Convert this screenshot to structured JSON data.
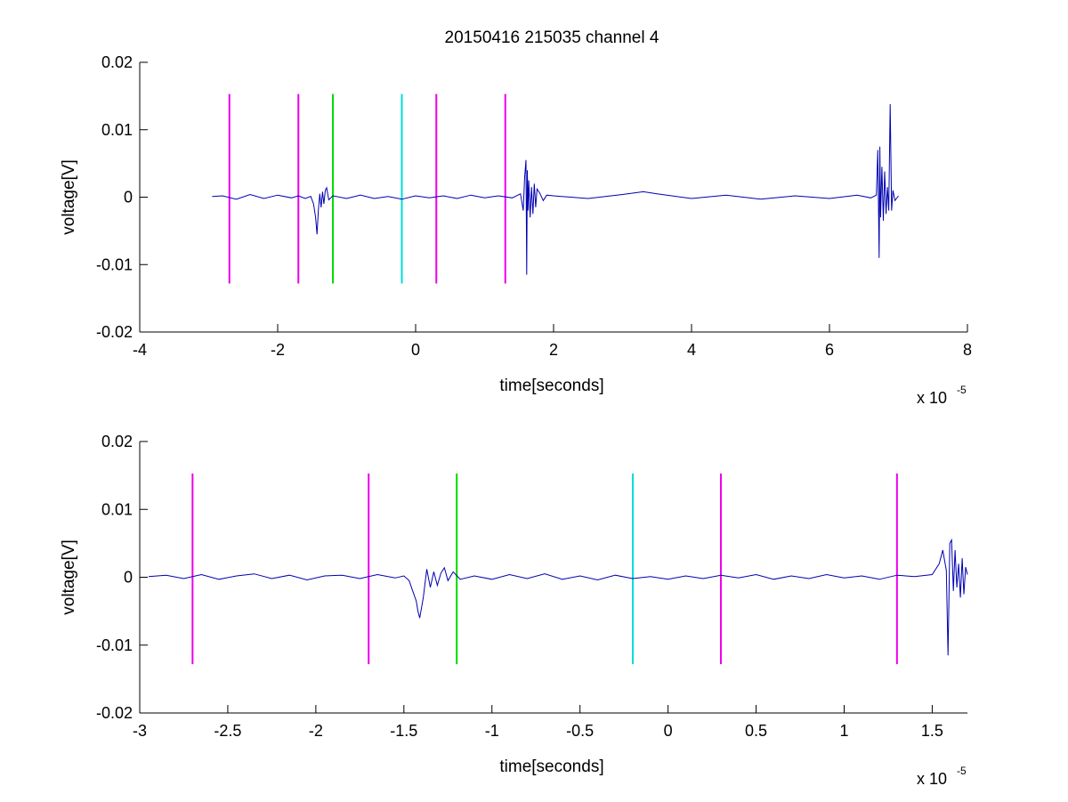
{
  "figure": {
    "background": "#ffffff",
    "title": "20150416 215035 channel 4"
  },
  "chart_data": [
    {
      "type": "line",
      "title": "20150416 215035 channel 4",
      "xlabel": "time[seconds]",
      "ylabel": "voltage[V]",
      "x_exponent_label": "x 10",
      "x_exponent": "-5",
      "xlim": [
        -4,
        8
      ],
      "ylim": [
        -0.02,
        0.02
      ],
      "x_scale": 1e-05,
      "xticks": [
        -4,
        -2,
        0,
        2,
        4,
        6,
        8
      ],
      "xtick_labels": [
        "-4",
        "-2",
        "0",
        "2",
        "4",
        "6",
        "8"
      ],
      "yticks": [
        -0.02,
        -0.01,
        0,
        0.01,
        0.02
      ],
      "ytick_labels": [
        "-0.02",
        "-0.01",
        "0",
        "0.01",
        "0.02"
      ],
      "grid": false,
      "series": [
        {
          "color": "#0000b0",
          "x": [
            -2.95,
            -2.8,
            -2.6,
            -2.4,
            -2.2,
            -2.0,
            -1.8,
            -1.7,
            -1.6,
            -1.52,
            -1.48,
            -1.45,
            -1.43,
            -1.41,
            -1.39,
            -1.37,
            -1.35,
            -1.33,
            -1.31,
            -1.29,
            -1.26,
            -1.2,
            -1.0,
            -0.8,
            -0.6,
            -0.4,
            -0.2,
            0.0,
            0.2,
            0.4,
            0.6,
            0.8,
            1.0,
            1.2,
            1.4,
            1.52,
            1.56,
            1.58,
            1.6,
            1.61,
            1.62,
            1.63,
            1.64,
            1.66,
            1.68,
            1.7,
            1.72,
            1.74,
            1.76,
            1.8,
            1.85,
            1.9,
            2.0,
            2.5,
            3.0,
            3.3,
            3.5,
            4.0,
            4.5,
            5.0,
            5.5,
            6.0,
            6.4,
            6.6,
            6.68,
            6.7,
            6.72,
            6.73,
            6.74,
            6.76,
            6.78,
            6.8,
            6.82,
            6.84,
            6.86,
            6.88,
            6.9,
            6.92,
            6.95,
            7.0
          ],
          "y": [
            0.0001,
            0.0002,
            -0.0003,
            0.0004,
            -0.0002,
            0.0003,
            -0.0001,
            0.0002,
            -0.0002,
            0.0001,
            -0.001,
            -0.003,
            -0.0055,
            -0.002,
            0.0005,
            -0.0015,
            0.0008,
            -0.001,
            0.001,
            0.0014,
            -0.0004,
            0.0002,
            -0.0002,
            0.0003,
            -0.0002,
            0.0001,
            -0.0003,
            0.0002,
            -0.0001,
            0.0002,
            -0.0002,
            0.0003,
            -0.0001,
            0.0002,
            -0.0001,
            0.0005,
            -0.002,
            0.003,
            0.0055,
            -0.0115,
            0.004,
            -0.002,
            0.0025,
            -0.003,
            0.0015,
            -0.0025,
            0.002,
            -0.0015,
            0.0012,
            0.0006,
            -0.0005,
            0.0003,
            0.0002,
            -0.0002,
            0.0004,
            0.0008,
            0.0005,
            -0.0002,
            0.0003,
            -0.0003,
            0.0002,
            -0.0002,
            0.0003,
            -0.0001,
            0.0003,
            0.007,
            -0.009,
            0.0075,
            -0.003,
            0.0045,
            -0.0035,
            0.0038,
            -0.0025,
            0.0015,
            -0.002,
            0.0138,
            -0.002,
            0.001,
            -0.0005,
            0.0002
          ]
        }
      ],
      "markers": [
        {
          "x": -2.7,
          "color": "#ee00ee"
        },
        {
          "x": -1.7,
          "color": "#ee00ee"
        },
        {
          "x": -1.2,
          "color": "#00dd00"
        },
        {
          "x": -0.2,
          "color": "#00dddd"
        },
        {
          "x": 0.3,
          "color": "#ee00ee"
        },
        {
          "x": 1.3,
          "color": "#ee00ee"
        }
      ],
      "marker_range": [
        -0.0128,
        0.0153
      ]
    },
    {
      "type": "line",
      "title": "",
      "xlabel": "time[seconds]",
      "ylabel": "voltage[V]",
      "x_exponent_label": "x 10",
      "x_exponent": "-5",
      "xlim": [
        -3,
        1.7
      ],
      "ylim": [
        -0.02,
        0.02
      ],
      "x_scale": 1e-05,
      "xticks": [
        -3,
        -2.5,
        -2,
        -1.5,
        -1,
        -0.5,
        0,
        0.5,
        1,
        1.5
      ],
      "xtick_labels": [
        "-3",
        "-2.5",
        "-2",
        "-1.5",
        "-1",
        "-0.5",
        "0",
        "0.5",
        "1",
        "1.5"
      ],
      "yticks": [
        -0.02,
        -0.01,
        0,
        0.01,
        0.02
      ],
      "ytick_labels": [
        "-0.02",
        "-0.01",
        "0",
        "0.01",
        "0.02"
      ],
      "grid": false,
      "series": [
        {
          "color": "#0000b0",
          "x": [
            -2.95,
            -2.85,
            -2.75,
            -2.65,
            -2.55,
            -2.45,
            -2.35,
            -2.25,
            -2.15,
            -2.05,
            -1.95,
            -1.85,
            -1.75,
            -1.65,
            -1.55,
            -1.5,
            -1.47,
            -1.45,
            -1.43,
            -1.42,
            -1.41,
            -1.39,
            -1.37,
            -1.35,
            -1.33,
            -1.31,
            -1.29,
            -1.27,
            -1.25,
            -1.22,
            -1.18,
            -1.1,
            -1.0,
            -0.9,
            -0.8,
            -0.7,
            -0.6,
            -0.5,
            -0.4,
            -0.3,
            -0.2,
            -0.1,
            0.0,
            0.1,
            0.2,
            0.3,
            0.4,
            0.5,
            0.6,
            0.7,
            0.8,
            0.9,
            1.0,
            1.1,
            1.2,
            1.3,
            1.4,
            1.5,
            1.54,
            1.56,
            1.58,
            1.59,
            1.6,
            1.61,
            1.62,
            1.63,
            1.64,
            1.65,
            1.66,
            1.67,
            1.68,
            1.69,
            1.7
          ],
          "y": [
            0.0001,
            0.0003,
            -0.0002,
            0.0004,
            -0.0003,
            0.0002,
            0.0005,
            -0.0002,
            0.0003,
            -0.0004,
            0.0002,
            0.0003,
            -0.0002,
            0.0004,
            -0.0001,
            0.0002,
            -0.0005,
            -0.002,
            -0.0035,
            -0.005,
            -0.006,
            -0.003,
            0.0012,
            -0.0015,
            0.0008,
            -0.0012,
            0.0006,
            0.0014,
            -0.0005,
            0.0008,
            -0.0003,
            0.0002,
            -0.0003,
            0.0004,
            -0.0002,
            0.0005,
            -0.0003,
            0.0002,
            -0.0004,
            0.0003,
            -0.0002,
            0.0001,
            -0.0003,
            0.0002,
            -0.0002,
            0.0003,
            -0.0001,
            0.0004,
            -0.0003,
            0.0002,
            -0.0002,
            0.0004,
            -0.0001,
            0.0002,
            -0.0003,
            0.0003,
            0.0001,
            0.0004,
            0.002,
            0.004,
            0.001,
            -0.0115,
            0.005,
            0.0055,
            -0.002,
            0.004,
            -0.0015,
            0.002,
            -0.003,
            0.0028,
            -0.0025,
            0.0015,
            0.0004
          ]
        }
      ],
      "markers": [
        {
          "x": -2.7,
          "color": "#ee00ee"
        },
        {
          "x": -1.7,
          "color": "#ee00ee"
        },
        {
          "x": -1.2,
          "color": "#00dd00"
        },
        {
          "x": -0.2,
          "color": "#00dddd"
        },
        {
          "x": 0.3,
          "color": "#ee00ee"
        },
        {
          "x": 1.3,
          "color": "#ee00ee"
        }
      ],
      "marker_range": [
        -0.0128,
        0.0153
      ]
    }
  ]
}
